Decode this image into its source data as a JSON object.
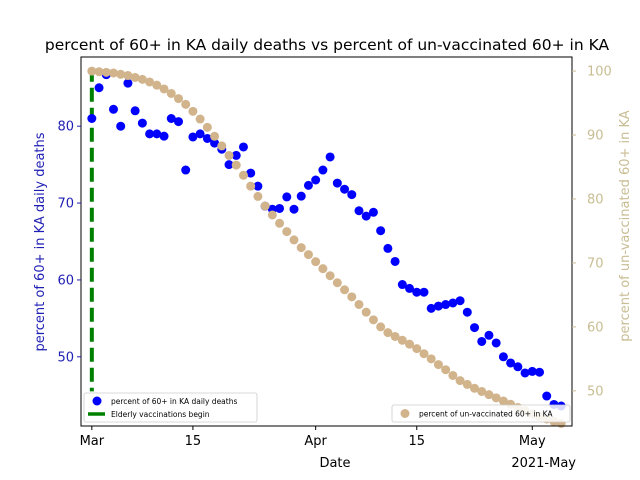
{
  "chart_data": {
    "type": "scatter",
    "title": "percent of 60+ in KA daily deaths vs percent of un-vaccinated 60+ in KA",
    "xlabel": "Date",
    "x_ticks": [
      {
        "day": 0,
        "label": "Mar"
      },
      {
        "day": 14,
        "label": "15"
      },
      {
        "day": 31,
        "label": "Apr"
      },
      {
        "day": 45,
        "label": "15"
      },
      {
        "day": 61,
        "label": "May"
      }
    ],
    "x_offset_label": "2021-May",
    "xlim_days": [
      -1.5,
      66.5
    ],
    "y_left": {
      "label": "percent of 60+ in KA daily deaths",
      "color": "#1f1fb4",
      "lim": [
        41,
        89
      ],
      "ticks": [
        50,
        60,
        70,
        80
      ]
    },
    "y_right": {
      "label": "percent of un-vaccinated 60+ in KA",
      "color": "#c8bd93",
      "lim": [
        44.5,
        102.2
      ],
      "ticks": [
        50,
        60,
        70,
        80,
        90,
        100
      ]
    },
    "vline": {
      "day": 0,
      "color": "#008000",
      "name": "Elderly vaccinations begin"
    },
    "series": [
      {
        "name": "percent of 60+ in KA daily deaths",
        "axis": "left",
        "color": "#0000ff",
        "points": [
          [
            0,
            81.0
          ],
          [
            1,
            85.0
          ],
          [
            2,
            86.7
          ],
          [
            3,
            82.2
          ],
          [
            4,
            80.0
          ],
          [
            5,
            85.6
          ],
          [
            6,
            82.0
          ],
          [
            7,
            80.4
          ],
          [
            8,
            79.0
          ],
          [
            9,
            79.0
          ],
          [
            10,
            78.7
          ],
          [
            11,
            81.0
          ],
          [
            12,
            80.6
          ],
          [
            13,
            74.3
          ],
          [
            14,
            78.6
          ],
          [
            15,
            79.0
          ],
          [
            16,
            78.4
          ],
          [
            17,
            77.8
          ],
          [
            18,
            77.0
          ],
          [
            19,
            75.0
          ],
          [
            20,
            76.2
          ],
          [
            21,
            77.3
          ],
          [
            22,
            73.9
          ],
          [
            23,
            72.2
          ],
          [
            24,
            69.6
          ],
          [
            25,
            69.2
          ],
          [
            26,
            69.3
          ],
          [
            27,
            70.8
          ],
          [
            28,
            69.2
          ],
          [
            29,
            70.9
          ],
          [
            30,
            72.3
          ],
          [
            31,
            73.0
          ],
          [
            32,
            74.3
          ],
          [
            33,
            76.0
          ],
          [
            34,
            72.6
          ],
          [
            35,
            71.8
          ],
          [
            36,
            71.1
          ],
          [
            37,
            69.0
          ],
          [
            38,
            68.3
          ],
          [
            39,
            68.8
          ],
          [
            40,
            66.4
          ],
          [
            41,
            64.1
          ],
          [
            42,
            62.4
          ],
          [
            43,
            59.4
          ],
          [
            44,
            58.9
          ],
          [
            45,
            58.4
          ],
          [
            46,
            58.4
          ],
          [
            47,
            56.3
          ],
          [
            48,
            56.6
          ],
          [
            49,
            56.8
          ],
          [
            50,
            57.0
          ],
          [
            51,
            57.3
          ],
          [
            52,
            55.8
          ],
          [
            53,
            53.8
          ],
          [
            54,
            52.0
          ],
          [
            55,
            52.8
          ],
          [
            56,
            51.8
          ],
          [
            57,
            50.0
          ],
          [
            58,
            49.2
          ],
          [
            59,
            48.7
          ],
          [
            60,
            47.9
          ],
          [
            61,
            48.1
          ],
          [
            62,
            48.0
          ],
          [
            63,
            44.9
          ],
          [
            64,
            43.8
          ],
          [
            65,
            43.6
          ]
        ]
      },
      {
        "name": "percent of un-vaccinated 60+ in KA",
        "axis": "right",
        "color": "#d2b48c",
        "points": [
          [
            0,
            100.0
          ],
          [
            1,
            99.9
          ],
          [
            2,
            99.8
          ],
          [
            3,
            99.7
          ],
          [
            4,
            99.5
          ],
          [
            5,
            99.3
          ],
          [
            6,
            99.0
          ],
          [
            7,
            98.7
          ],
          [
            8,
            98.3
          ],
          [
            9,
            97.8
          ],
          [
            10,
            97.2
          ],
          [
            11,
            96.5
          ],
          [
            12,
            95.7
          ],
          [
            13,
            94.8
          ],
          [
            14,
            93.7
          ],
          [
            15,
            92.5
          ],
          [
            16,
            91.2
          ],
          [
            17,
            89.8
          ],
          [
            18,
            88.3
          ],
          [
            19,
            86.8
          ],
          [
            20,
            85.3
          ],
          [
            21,
            83.7
          ],
          [
            22,
            82.0
          ],
          [
            23,
            80.4
          ],
          [
            24,
            78.9
          ],
          [
            25,
            77.5
          ],
          [
            26,
            76.2
          ],
          [
            27,
            74.9
          ],
          [
            28,
            73.6
          ],
          [
            29,
            72.4
          ],
          [
            30,
            71.3
          ],
          [
            31,
            70.2
          ],
          [
            32,
            69.1
          ],
          [
            33,
            68.0
          ],
          [
            34,
            66.9
          ],
          [
            35,
            65.8
          ],
          [
            36,
            64.7
          ],
          [
            37,
            63.5
          ],
          [
            38,
            62.3
          ],
          [
            39,
            61.1
          ],
          [
            40,
            60.0
          ],
          [
            41,
            59.1
          ],
          [
            42,
            58.5
          ],
          [
            43,
            57.9
          ],
          [
            44,
            57.3
          ],
          [
            45,
            56.6
          ],
          [
            46,
            55.8
          ],
          [
            47,
            55.0
          ],
          [
            48,
            54.1
          ],
          [
            49,
            53.3
          ],
          [
            50,
            52.4
          ],
          [
            51,
            51.6
          ],
          [
            52,
            51.0
          ],
          [
            53,
            50.4
          ],
          [
            54,
            49.9
          ],
          [
            55,
            49.4
          ],
          [
            56,
            48.9
          ],
          [
            57,
            48.4
          ],
          [
            58,
            47.9
          ],
          [
            59,
            47.4
          ],
          [
            60,
            46.9
          ],
          [
            61,
            46.4
          ],
          [
            62,
            46.0
          ],
          [
            63,
            45.6
          ],
          [
            64,
            45.2
          ],
          [
            65,
            44.9
          ]
        ]
      }
    ],
    "legend_left": [
      "percent of 60+ in KA daily deaths",
      "Elderly vaccinations begin"
    ],
    "legend_right": [
      "percent of un-vaccinated 60+ in KA"
    ],
    "legend_placement": [
      "lower-left",
      "lower-right"
    ],
    "grid": false
  }
}
